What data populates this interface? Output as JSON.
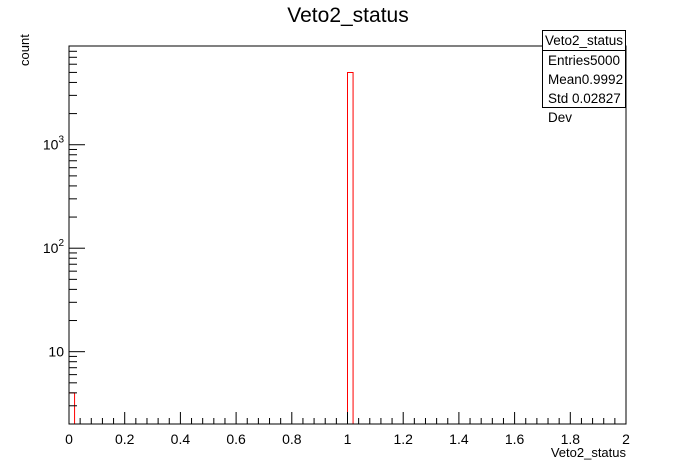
{
  "chart_data": {
    "type": "histogram",
    "title": "Veto2_status",
    "xlabel": "Veto2_status",
    "ylabel": "count",
    "xlim": [
      0,
      2
    ],
    "ylim": [
      2,
      9000
    ],
    "yscale": "log",
    "bins": 100,
    "x_ticks": [
      "0",
      "0.2",
      "0.4",
      "0.6",
      "0.8",
      "1",
      "1.2",
      "1.4",
      "1.6",
      "1.8",
      "2"
    ],
    "y_ticks": [
      {
        "base": "10",
        "exp": "",
        "value": 10
      },
      {
        "base": "10",
        "exp": "2",
        "value": 100
      },
      {
        "base": "10",
        "exp": "3",
        "value": 1000
      }
    ],
    "data": [
      {
        "x_low": 0.0,
        "x_high": 0.02,
        "count": 4
      },
      {
        "x_low": 1.0,
        "x_high": 1.02,
        "count": 4996
      }
    ],
    "line_color": "#ff0000",
    "grid": false
  },
  "stats": {
    "title": "Veto2_status",
    "rows": [
      {
        "label": "Entries",
        "value": "5000"
      },
      {
        "label": "Mean",
        "value": "0.9992"
      },
      {
        "label": "Std Dev",
        "value": "0.02827"
      }
    ]
  }
}
